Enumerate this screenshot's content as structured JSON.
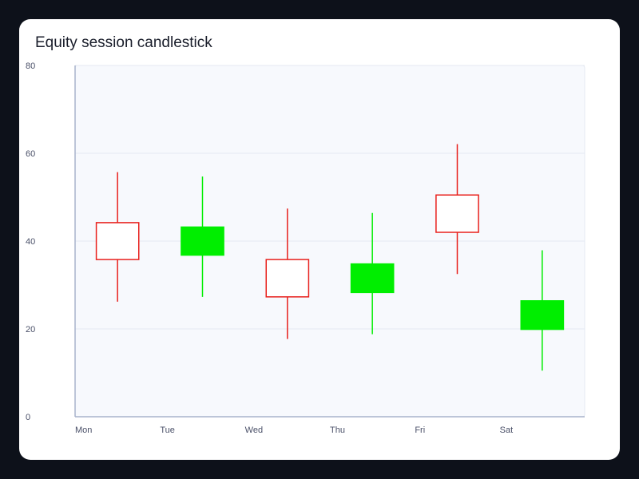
{
  "chart_data": {
    "type": "candlestick",
    "title": "Equity session candlestick",
    "xlabel": "",
    "ylabel": "",
    "categories": [
      "Mon",
      "Tue",
      "Wed",
      "Thu",
      "Fri",
      "Sat"
    ],
    "ylim": [
      0,
      80
    ],
    "y_ticks": [
      0,
      20,
      40,
      60,
      80
    ],
    "grid": true,
    "series": [
      {
        "values": [
          {
            "x": "Mon",
            "open": 35.8,
            "high": 55.7,
            "low": 26.2,
            "close": 44.2
          },
          {
            "x": "Tue",
            "open": 43.2,
            "high": 54.7,
            "low": 27.3,
            "close": 36.8
          },
          {
            "x": "Wed",
            "open": 27.3,
            "high": 47.4,
            "low": 17.7,
            "close": 35.8
          },
          {
            "x": "Thu",
            "open": 34.8,
            "high": 46.4,
            "low": 18.8,
            "close": 28.3
          },
          {
            "x": "Fri",
            "open": 42.0,
            "high": 62.1,
            "low": 32.5,
            "close": 50.5
          },
          {
            "x": "Sat",
            "open": 26.4,
            "high": 37.9,
            "low": 10.5,
            "close": 19.9
          }
        ]
      }
    ],
    "colors": {
      "rising": "#e8201c",
      "falling": "#00ee00",
      "rising_fill": "#ffffff",
      "plot_background": "#f7f9fd",
      "gridline": "#e4e9f2",
      "axis": "#a9b4cc"
    }
  }
}
